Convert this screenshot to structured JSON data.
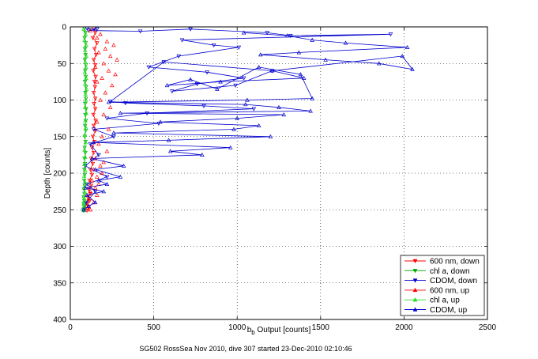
{
  "chart_data": {
    "type": "scatter",
    "xlabel_main": "b",
    "xlabel_sub": "b",
    "xlabel_rest": " Output [counts]",
    "ylabel": "Depth [counts]",
    "caption": "SG502 RossSea Nov 2010, dive 307 started 23-Dec-2010 02:10:46",
    "xlim": [
      0,
      2500
    ],
    "ylim": [
      0,
      400
    ],
    "y_reversed": true,
    "grid": true,
    "x_ticks": [
      0,
      500,
      1000,
      1500,
      2000,
      2500
    ],
    "y_ticks": [
      0,
      50,
      100,
      150,
      200,
      250,
      300,
      350,
      400
    ],
    "legend_position": "bottom-right",
    "series": [
      {
        "name": "600 nm, down",
        "color": "#ff0000",
        "marker": "triangle-down",
        "style": "line+marker",
        "x": [
          140,
          150,
          135,
          160,
          145,
          155,
          140,
          150,
          138,
          152,
          145,
          148,
          140,
          150,
          142,
          150,
          138,
          152,
          140,
          150,
          135,
          145,
          130,
          140,
          125,
          135,
          120,
          130,
          115,
          125,
          110,
          120,
          105,
          115,
          100,
          110,
          105,
          100
        ],
        "y": [
          2,
          8,
          15,
          22,
          30,
          38,
          45,
          52,
          60,
          68,
          75,
          82,
          90,
          98,
          105,
          112,
          120,
          128,
          135,
          142,
          150,
          157,
          165,
          172,
          180,
          187,
          195,
          202,
          210,
          217,
          222,
          228,
          233,
          238,
          242,
          246,
          249,
          251
        ]
      },
      {
        "name": "chl a, down",
        "color": "#00aa00",
        "marker": "triangle-down",
        "style": "line+marker",
        "x": [
          85,
          90,
          86,
          92,
          88,
          91,
          87,
          93,
          89,
          92,
          88,
          94,
          90,
          93,
          89,
          95,
          90,
          93,
          88,
          92,
          87,
          91,
          86,
          90,
          85,
          88,
          84,
          87,
          83,
          86,
          82,
          85,
          81,
          84,
          80,
          83,
          82,
          80
        ],
        "y": [
          2,
          8,
          15,
          22,
          30,
          38,
          45,
          52,
          60,
          68,
          75,
          82,
          90,
          98,
          105,
          112,
          120,
          128,
          135,
          142,
          150,
          157,
          165,
          172,
          180,
          187,
          195,
          202,
          210,
          217,
          222,
          228,
          233,
          238,
          242,
          246,
          249,
          251
        ]
      },
      {
        "name": "CDOM, down",
        "color": "#0000cc",
        "marker": "triangle-down",
        "style": "line+marker",
        "x": [
          100,
          160,
          110,
          420,
          720,
          1180,
          1320,
          1920,
          670,
          860,
          1010,
          650,
          470,
          820,
          1040,
          760,
          610,
          990,
          1210,
          560,
          240,
          330,
          800,
          1100,
          460,
          220,
          530,
          140,
          260,
          120,
          170,
          90,
          220,
          100,
          150,
          95,
          80
        ],
        "y": [
          2,
          3,
          5,
          6,
          3,
          8,
          12,
          10,
          18,
          25,
          28,
          40,
          55,
          62,
          70,
          78,
          88,
          80,
          60,
          48,
          102,
          104,
          108,
          112,
          118,
          125,
          132,
          140,
          150,
          160,
          175,
          190,
          205,
          215,
          225,
          240,
          250
        ]
      },
      {
        "name": "600 nm, up",
        "color": "#ff0000",
        "marker": "triangle-up",
        "style": "marker",
        "x": [
          120,
          180,
          160,
          220,
          260,
          210,
          170,
          240,
          280,
          200,
          150,
          230,
          270,
          190,
          160,
          250,
          210,
          180,
          240,
          200,
          160,
          230,
          190,
          170,
          220,
          150,
          200,
          180,
          140,
          190,
          160,
          130,
          170,
          150,
          120,
          160,
          110,
          140,
          100,
          120
        ],
        "y": [
          5,
          10,
          15,
          20,
          25,
          30,
          35,
          40,
          45,
          50,
          55,
          60,
          65,
          70,
          75,
          80,
          90,
          100,
          110,
          120,
          130,
          140,
          150,
          160,
          170,
          180,
          185,
          190,
          195,
          200,
          205,
          210,
          215,
          220,
          225,
          230,
          235,
          240,
          245,
          250
        ]
      },
      {
        "name": "chl a, up",
        "color": "#22dd22",
        "marker": "triangle-up",
        "style": "line+marker",
        "x": [
          80,
          92,
          85,
          95,
          88,
          96,
          90,
          94,
          87,
          95,
          89,
          97,
          91,
          93,
          88,
          96,
          90,
          94,
          86,
          92,
          85,
          90,
          84,
          89,
          83,
          88,
          82,
          86,
          81,
          85,
          80,
          84,
          79,
          83
        ],
        "y": [
          3,
          10,
          18,
          25,
          32,
          40,
          48,
          55,
          62,
          70,
          78,
          85,
          92,
          100,
          110,
          118,
          128,
          138,
          148,
          158,
          168,
          178,
          188,
          196,
          204,
          212,
          220,
          226,
          232,
          237,
          242,
          246,
          249,
          251
        ]
      },
      {
        "name": "CDOM, up",
        "color": "#0000cc",
        "marker": "triangle-up",
        "style": "line+marker",
        "x": [
          1040,
          1300,
          1450,
          1650,
          2020,
          1370,
          1140,
          1530,
          1850,
          2050,
          1990,
          1210,
          1400,
          900,
          580,
          720,
          880,
          1130,
          1380,
          1450,
          1060,
          230,
          1050,
          1250,
          1440,
          300,
          1280,
          1000,
          540,
          1130,
          980,
          260,
          1200,
          590,
          140,
          960,
          600,
          790,
          130,
          320,
          150,
          300,
          170,
          220,
          90,
          200,
          100,
          150,
          110,
          80
        ],
        "y": [
          8,
          12,
          18,
          22,
          28,
          35,
          38,
          45,
          50,
          58,
          40,
          60,
          70,
          75,
          80,
          72,
          85,
          55,
          65,
          98,
          100,
          103,
          106,
          110,
          115,
          118,
          120,
          125,
          130,
          135,
          140,
          145,
          150,
          155,
          158,
          165,
          170,
          175,
          180,
          190,
          195,
          205,
          210,
          215,
          220,
          225,
          230,
          240,
          245,
          250
        ]
      }
    ]
  }
}
